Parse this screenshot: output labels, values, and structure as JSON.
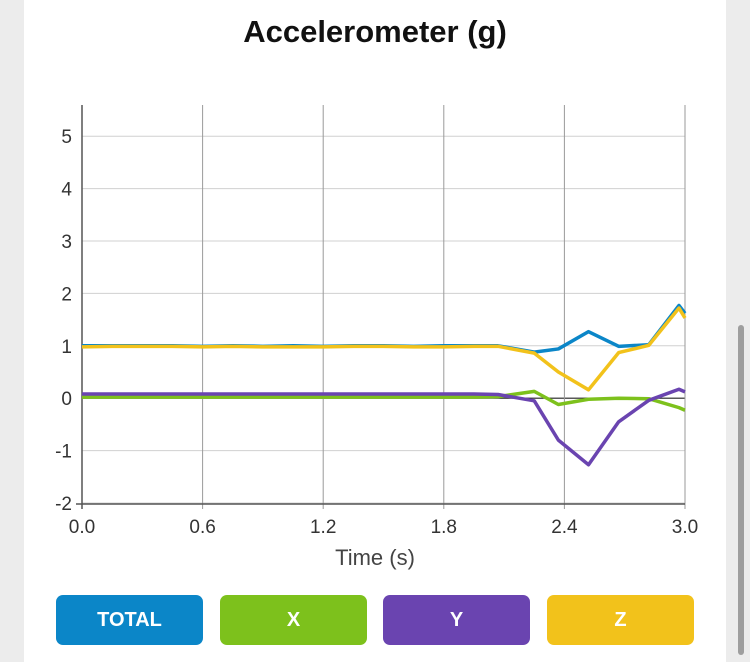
{
  "chart_data": {
    "type": "line",
    "title": "Accelerometer (g)",
    "xlabel": "Time (s)",
    "ylabel": "",
    "xlim": [
      0.0,
      3.0
    ],
    "ylim": [
      -2,
      5.5
    ],
    "x_ticks": [
      "0.0",
      "0.6",
      "1.2",
      "1.8",
      "2.4",
      "3.0"
    ],
    "y_ticks": [
      "5",
      "4",
      "3",
      "2",
      "1",
      "0",
      "-1",
      "-2"
    ],
    "grid": true,
    "x": [
      0.0,
      0.15,
      0.3,
      0.45,
      0.6,
      0.75,
      0.9,
      1.05,
      1.2,
      1.35,
      1.5,
      1.65,
      1.8,
      1.95,
      2.07,
      2.25,
      2.37,
      2.52,
      2.67,
      2.82,
      2.97,
      3.0
    ],
    "series": [
      {
        "name": "TOTAL",
        "color": "#0b86c8",
        "values": [
          1.0,
          1.0,
          1.0,
          1.0,
          0.99,
          1.0,
          0.99,
          1.0,
          0.99,
          1.0,
          1.0,
          0.99,
          1.0,
          1.0,
          1.0,
          0.88,
          0.94,
          1.27,
          0.99,
          1.02,
          1.77,
          1.62
        ]
      },
      {
        "name": "X",
        "color": "#7dc11c",
        "values": [
          0.02,
          0.02,
          0.02,
          0.02,
          0.02,
          0.02,
          0.02,
          0.02,
          0.02,
          0.02,
          0.02,
          0.02,
          0.02,
          0.02,
          0.03,
          0.13,
          -0.12,
          -0.02,
          0.0,
          -0.01,
          -0.18,
          -0.23
        ]
      },
      {
        "name": "Y",
        "color": "#6a44b0",
        "values": [
          0.08,
          0.08,
          0.08,
          0.08,
          0.08,
          0.08,
          0.08,
          0.08,
          0.08,
          0.08,
          0.08,
          0.08,
          0.08,
          0.08,
          0.07,
          -0.05,
          -0.8,
          -1.27,
          -0.45,
          -0.04,
          0.17,
          0.12
        ]
      },
      {
        "name": "Z",
        "color": "#f2c21b",
        "values": [
          0.98,
          0.99,
          0.99,
          0.99,
          0.98,
          0.99,
          0.98,
          0.98,
          0.98,
          0.99,
          0.99,
          0.98,
          0.98,
          0.99,
          0.99,
          0.86,
          0.5,
          0.16,
          0.87,
          1.01,
          1.72,
          1.53
        ]
      }
    ]
  },
  "buttons": [
    {
      "label": "TOTAL",
      "color": "#0b86c8"
    },
    {
      "label": "X",
      "color": "#7dc11c"
    },
    {
      "label": "Y",
      "color": "#6a44b0"
    },
    {
      "label": "Z",
      "color": "#f2c21b"
    }
  ]
}
